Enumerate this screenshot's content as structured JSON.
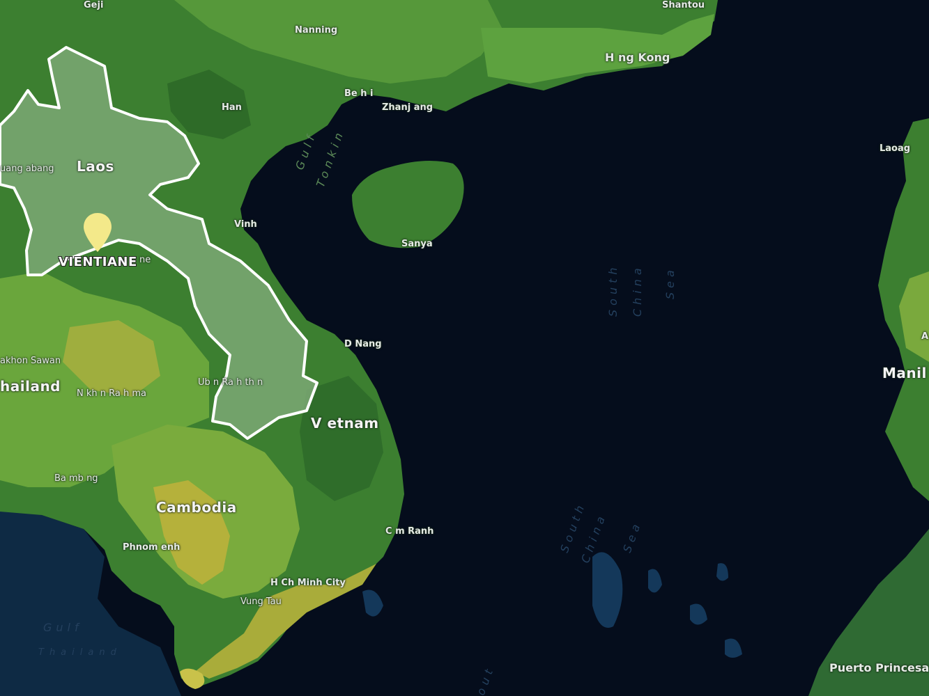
{
  "map": {
    "selected_country": "Laos",
    "selected_capital": "VIENTIANE",
    "colors": {
      "ocean": "#050d1c",
      "shallow_water": "#0f2e4a",
      "land_base": "#3f8b33",
      "land_light": "#6aa63c",
      "land_yellow": "#b9b43a",
      "selected_fill": "#7ba874",
      "selected_border": "#ffffff",
      "marker": "#f3e98a"
    },
    "labels": {
      "laos": "Laos",
      "vietnam": "V etnam",
      "thailand": "hailand",
      "cambodia": "Cambodia",
      "manila": "Manil",
      "hong_kong": "H ng Kong",
      "nanning": "Nanning",
      "shantou": "Shantou",
      "beihai": "Be h  i",
      "zhanjiang": "Zhanj ang",
      "hanoi": "Han",
      "vinh": "Vinh",
      "sanya": "Sanya",
      "da_nang": "D  Nang",
      "luang_prabang": "uang   abang",
      "vientiane_under": "ne",
      "ubon": "Ub n Ra  h th  n",
      "sakhon": "akhon Sawan",
      "nakhon": "N  kh n Ra  h   ma",
      "battambang": "Ba   mb ng",
      "phnom_penh": "Phnom  enh",
      "cam_ranh": "C m Ranh",
      "hcmc": "H  Ch  Minh City",
      "vung_tau": "Vung Tau",
      "puerto_princesa": "Puerto Princesa",
      "laoag": "Laoag",
      "a_edge": "A",
      "gejiu": "Geji",
      "gulf_tonkin_1": "Gulf",
      "gulf_tonkin_2": "Tonkin",
      "south_china_sea_1": "South",
      "south_china_sea_2": "China",
      "south_china_sea_3": "Sea",
      "south_china_sea_4": "South",
      "south_china_sea_5": "China",
      "south_china_sea_6": "Sea",
      "gulf_thailand_1": "Gulf",
      "gulf_thailand_2": "Thailand",
      "out_label": "out"
    },
    "capital_label": "VIENTIANE"
  }
}
